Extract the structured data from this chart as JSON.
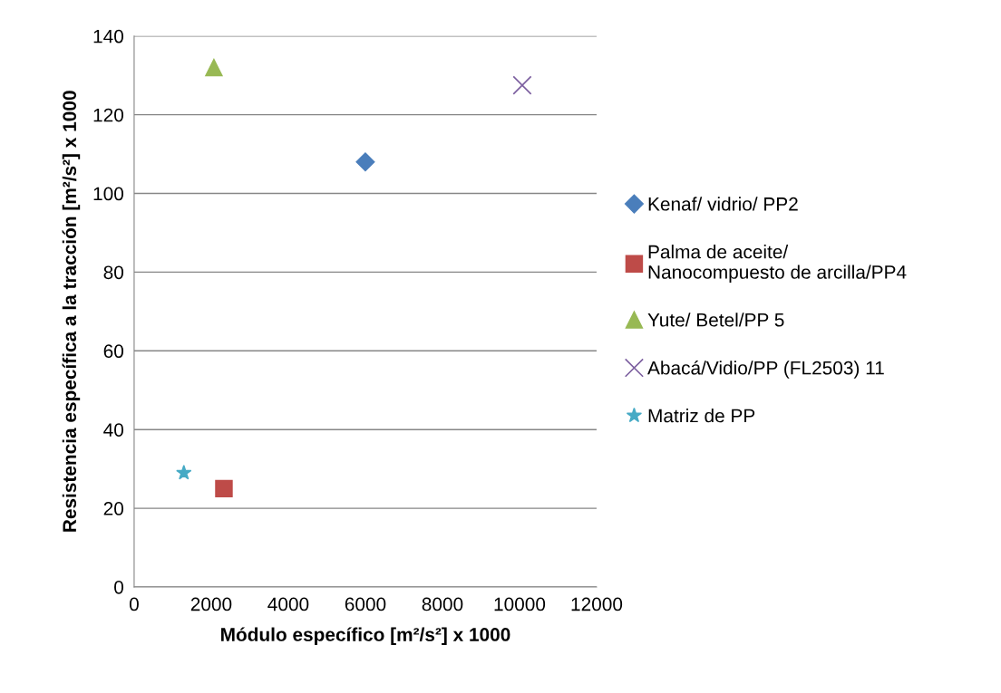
{
  "chart_data": {
    "type": "scatter",
    "xlabel": "Módulo específico [m²/s²] x 1000",
    "ylabel": "Resistencia específica a la tracción [m²/s²] x 1000",
    "series": [
      {
        "name": "Kenaf/ vidrio/ PP2",
        "color": "#4a7ebb",
        "marker": "diamond",
        "x": [
          6000
        ],
        "values": [
          108
        ]
      },
      {
        "name": "Palma de aceite/\nNanocompuesto de arcilla/PP4",
        "color": "#be4b48",
        "marker": "square",
        "x": [
          2330
        ],
        "values": [
          25
        ]
      },
      {
        "name": "Yute/ Betel/PP 5",
        "color": "#98b954",
        "marker": "triangle",
        "x": [
          2070
        ],
        "values": [
          132
        ]
      },
      {
        "name": "Abacá/Vidio/PP (FL2503) 11",
        "color": "#7d60a0",
        "marker": "cross",
        "x": [
          10070
        ],
        "values": [
          127.5
        ]
      },
      {
        "name": "Matriz de PP",
        "color": "#46aac5",
        "marker": "star",
        "x": [
          1290
        ],
        "values": [
          29
        ]
      }
    ],
    "xlim": [
      0,
      12000
    ],
    "xticks": [
      0,
      2000,
      4000,
      6000,
      8000,
      10000,
      12000
    ],
    "ylim": [
      0,
      140
    ],
    "yticks": [
      0,
      20,
      40,
      60,
      80,
      100,
      120,
      140
    ],
    "grid": "y",
    "legend": "right"
  }
}
